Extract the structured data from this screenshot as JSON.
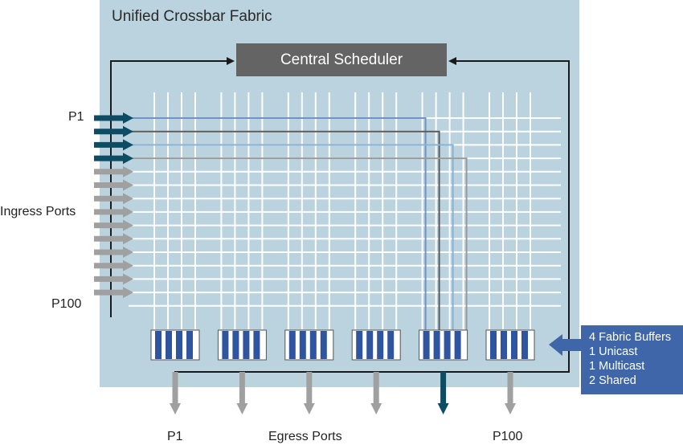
{
  "fabric": {
    "title": "Unified Crossbar Fabric"
  },
  "scheduler": {
    "label": "Central Scheduler"
  },
  "ingress": {
    "label": "Ingress Ports",
    "first_port": "P1",
    "last_port": "P100",
    "arrow_count": 14,
    "active_count": 4
  },
  "egress": {
    "label": "Egress Ports",
    "first_port": "P1",
    "last_port": "P100",
    "active_index": 4
  },
  "buffers": {
    "group_count": 6,
    "cells_per_group": 4,
    "legend": {
      "title": "4 Fabric Buffers",
      "items": [
        "1 Unicast",
        "1 Multicast",
        "2 Shared"
      ]
    }
  },
  "colors": {
    "fabric_bg": "#bad3de",
    "scheduler_bg": "#646464",
    "active_arrow": "#0e4c63",
    "inactive_arrow": "#a0a0a0",
    "buffer_cell": "#2f55a0",
    "legend_bg": "#3e66a8",
    "path_blue": "#7094c8",
    "path_dark": "#5a5a5a",
    "path_light_blue": "#8ab0d4",
    "path_grey": "#9a9a9a"
  }
}
